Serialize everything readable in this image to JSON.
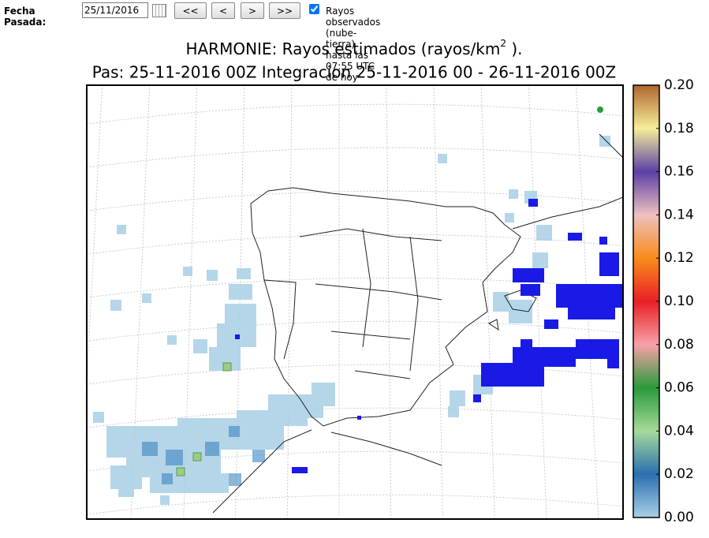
{
  "toolbar": {
    "date_label": "Fecha Pasada:",
    "date_value": "25/11/2016",
    "buttons": [
      "<<",
      "<",
      ">",
      ">>"
    ],
    "checkbox_label": "Rayos observados (nube-tierra) hasta las 07:55 UTC de hoy",
    "checkbox_checked": true
  },
  "chart_data": {
    "type": "map",
    "title": {
      "main": "HARMONIE: Rayos estimados  (rayos/km",
      "superscript": "2",
      "end": " )."
    },
    "subtitle": "Pas: 25-11-2016 00Z Integracion 25-11-2016 00 - 26-11-2016 00Z",
    "colorbar": {
      "lim": [
        0,
        0.2
      ],
      "ticks": [
        {
          "value": 0,
          "label": "0.00"
        },
        {
          "value": 0.02,
          "label": "0.02"
        },
        {
          "value": 0.04,
          "label": "0.04"
        },
        {
          "value": 0.06,
          "label": "0.06"
        },
        {
          "value": 0.08,
          "label": "0.08"
        },
        {
          "value": 0.1,
          "label": "0.10"
        },
        {
          "value": 0.12,
          "label": "0.12"
        },
        {
          "value": 0.14,
          "label": "0.14"
        },
        {
          "value": 0.16,
          "label": "0.16"
        },
        {
          "value": 0.18,
          "label": "0.18"
        },
        {
          "value": 0.2,
          "label": "0.20"
        }
      ]
    }
  }
}
